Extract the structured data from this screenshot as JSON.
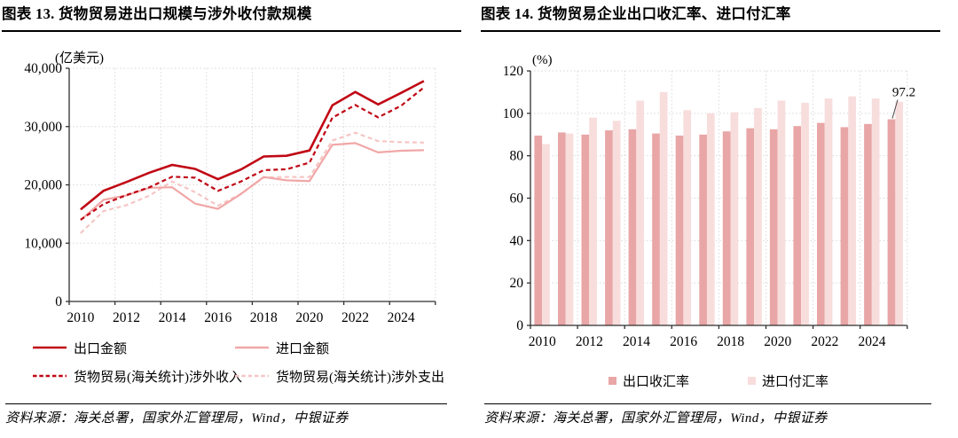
{
  "panels": {
    "left": {
      "title": "图表 13. 货物贸易进出口规模与涉外收付款规模",
      "source": "资料来源：海关总署，国家外汇管理局，Wind，中银证券"
    },
    "right": {
      "title": "图表 14. 货物贸易企业出口收汇率、进口付汇率",
      "source": "资料来源：海关总署，国家外汇管理局，Wind，中银证券"
    }
  },
  "colors": {
    "dark_red": "#C00714",
    "pink_solid": "#F1A7A7",
    "pink_dashed": "#F6C5C5",
    "bar_dark": "#E9A6A6",
    "bar_light": "#F8DDDD",
    "grid": "#D8D8D8",
    "axis": "#2F2F2F"
  },
  "chart_data": [
    {
      "type": "line",
      "title": "图表 13. 货物贸易进出口规模与涉外收付款规模",
      "unit": "(亿美元)",
      "x": [
        2010,
        2011,
        2012,
        2013,
        2014,
        2015,
        2016,
        2017,
        2018,
        2019,
        2020,
        2021,
        2022,
        2023,
        2024,
        2025
      ],
      "xtick_labels": [
        "2010",
        "2012",
        "2014",
        "2016",
        "2018",
        "2020",
        "2022",
        "2024"
      ],
      "ylim": [
        0,
        40000
      ],
      "yticks": [
        0,
        10000,
        20000,
        30000,
        40000
      ],
      "grid": "dotted",
      "legend_position": "bottom",
      "series": [
        {
          "id": "export-amount",
          "name": "出口金额",
          "style": "solid",
          "color": "#C00714",
          "values": [
            15778,
            18984,
            20487,
            22090,
            23423,
            22735,
            20976,
            22633,
            24867,
            24995,
            25900,
            33640,
            35936,
            33800,
            35772,
            37810
          ]
        },
        {
          "id": "import-amount",
          "name": "进口金额",
          "style": "solid",
          "color": "#F1A7A7",
          "values": [
            13962,
            17435,
            18184,
            19499,
            19592,
            16796,
            15879,
            18438,
            21356,
            20771,
            20660,
            26875,
            27160,
            25568,
            25850,
            25950
          ]
        },
        {
          "id": "bop-goods-receipts",
          "name": "货物贸易(海关统计)涉外收入",
          "style": "dashed",
          "color": "#C00714",
          "values": [
            14000,
            16700,
            18240,
            19580,
            21400,
            21230,
            18970,
            20560,
            22530,
            22680,
            23800,
            31520,
            33700,
            31570,
            33560,
            36720
          ]
        },
        {
          "id": "bop-goods-payments",
          "name": "货物贸易(海关统计)涉外支出",
          "style": "dashed",
          "color": "#F6C5C5",
          "values": [
            11720,
            15500,
            16520,
            18140,
            20580,
            18740,
            16440,
            18420,
            21280,
            21350,
            21340,
            27600,
            28950,
            27510,
            27330,
            27260
          ]
        }
      ]
    },
    {
      "type": "bar",
      "title": "图表 14. 货物贸易企业出口收汇率、进口付汇率",
      "unit": "(%)",
      "categories": [
        2010,
        2011,
        2012,
        2013,
        2014,
        2015,
        2016,
        2017,
        2018,
        2019,
        2020,
        2021,
        2022,
        2023,
        2024,
        2025
      ],
      "xtick_labels": [
        "2010",
        "2012",
        "2014",
        "2016",
        "2018",
        "2020",
        "2022",
        "2024"
      ],
      "ylim": [
        0,
        120
      ],
      "yticks": [
        0,
        20,
        40,
        60,
        80,
        100,
        120
      ],
      "grid": "dotted",
      "legend_position": "bottom",
      "series": [
        {
          "id": "export-receipt-ratio",
          "name": "出口收汇率",
          "color": "#E9A6A6",
          "values": [
            89.5,
            91.0,
            90.0,
            92.0,
            92.5,
            90.5,
            89.5,
            90.0,
            91.5,
            93.0,
            92.5,
            94.0,
            95.5,
            93.5,
            95.0,
            97.2
          ]
        },
        {
          "id": "import-payment-ratio",
          "name": "进口付汇率",
          "color": "#F8DDDD",
          "values": [
            85.5,
            90.5,
            98.0,
            96.5,
            106.0,
            110.0,
            101.5,
            100.0,
            100.5,
            102.5,
            106.0,
            105.0,
            107.0,
            108.0,
            107.0,
            105.5
          ]
        }
      ],
      "annotation": {
        "text": "97.2",
        "series": 0,
        "index": 15
      }
    }
  ]
}
